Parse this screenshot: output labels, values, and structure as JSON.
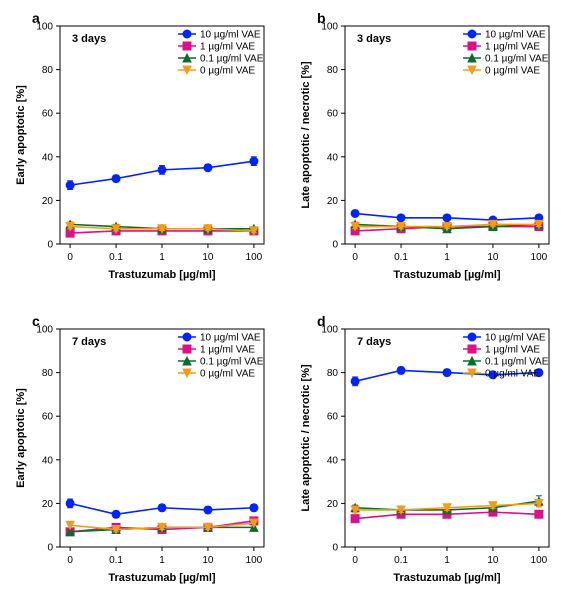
{
  "global": {
    "background_color": "#ffffff",
    "border_color": "#000000",
    "font_family": "Arial, Helvetica, sans-serif",
    "panel_label_fontsize": 14,
    "panel_label_fontweight": "bold",
    "title_fontsize": 11,
    "title_fontweight": "bold",
    "legend_fontsize": 10,
    "axis_label_fontsize": 11,
    "axis_label_fontweight": "bold",
    "tick_fontsize": 10,
    "x_ticks": [
      "0",
      "0.1",
      "1",
      "10",
      "100"
    ],
    "x_positions": [
      0,
      1,
      2,
      3,
      4
    ],
    "y_ticks": [
      0,
      20,
      40,
      60,
      80,
      100
    ],
    "ylim": [
      0,
      100
    ],
    "line_width": 1.6,
    "marker_size": 4,
    "error_cap": 3,
    "series_style": {
      "vae10": {
        "label": "10 µg/ml VAE",
        "color": "#0024ff",
        "marker": "circle"
      },
      "vae1": {
        "label": "1 µg/ml VAE",
        "color": "#d9118a",
        "marker": "square"
      },
      "vae01": {
        "label": "0.1 µg/ml VAE",
        "color": "#0c6b2e",
        "marker": "triangle-up"
      },
      "vae0": {
        "label": "0 µg/ml VAE",
        "color": "#f39c19",
        "marker": "triangle-down"
      }
    },
    "x_label": "Trastuzumab [µg/ml]"
  },
  "panels": {
    "a": {
      "panel_label": "a",
      "title": "3 days",
      "y_label": "Early apoptotic [%]",
      "series": {
        "vae10": {
          "y": [
            27,
            30,
            34,
            35,
            38
          ],
          "err": [
            2,
            1.5,
            2,
            1.5,
            2
          ]
        },
        "vae1": {
          "y": [
            5,
            6,
            6,
            6,
            6
          ],
          "err": [
            0.8,
            0.8,
            0.8,
            0.8,
            0.8
          ]
        },
        "vae01": {
          "y": [
            9,
            8,
            7,
            7,
            7
          ],
          "err": [
            1,
            1,
            0.8,
            0.8,
            0.8
          ]
        },
        "vae0": {
          "y": [
            8,
            7,
            7,
            7,
            6
          ],
          "err": [
            1,
            1,
            0.8,
            0.8,
            0.8
          ]
        }
      }
    },
    "b": {
      "panel_label": "b",
      "title": "3 days",
      "y_label": "Late apoptotic / necrotic [%]",
      "series": {
        "vae10": {
          "y": [
            14,
            12,
            12,
            11,
            12
          ],
          "err": [
            1.2,
            1,
            1,
            1,
            1
          ]
        },
        "vae1": {
          "y": [
            6,
            7,
            8,
            8,
            8
          ],
          "err": [
            0.8,
            0.8,
            0.8,
            0.8,
            0.8
          ]
        },
        "vae01": {
          "y": [
            9,
            8,
            7,
            8,
            9
          ],
          "err": [
            1,
            1,
            0.8,
            0.8,
            1
          ]
        },
        "vae0": {
          "y": [
            8,
            8,
            8,
            9,
            9
          ],
          "err": [
            1,
            1,
            0.8,
            0.8,
            1
          ]
        }
      }
    },
    "c": {
      "panel_label": "c",
      "title": "7 days",
      "y_label": "Early apoptotic [%]",
      "series": {
        "vae10": {
          "y": [
            20,
            15,
            18,
            17,
            18
          ],
          "err": [
            2,
            1.5,
            1.5,
            1.5,
            1.5
          ]
        },
        "vae1": {
          "y": [
            7,
            9,
            8,
            9,
            12
          ],
          "err": [
            1,
            1,
            1,
            1,
            1.5
          ]
        },
        "vae01": {
          "y": [
            7,
            8,
            9,
            9,
            9
          ],
          "err": [
            1,
            1,
            1,
            1,
            1
          ]
        },
        "vae0": {
          "y": [
            10,
            8,
            9,
            9,
            11
          ],
          "err": [
            1,
            1,
            1,
            1,
            1.2
          ]
        }
      }
    },
    "d": {
      "panel_label": "d",
      "title": "7 days",
      "y_label": "Late apoptotic / necrotic [%]",
      "series": {
        "vae10": {
          "y": [
            76,
            81,
            80,
            79,
            80
          ],
          "err": [
            2,
            1.5,
            1.5,
            1.5,
            1.5
          ]
        },
        "vae1": {
          "y": [
            13,
            15,
            15,
            16,
            15
          ],
          "err": [
            1.2,
            1.2,
            1.2,
            1.2,
            1.2
          ]
        },
        "vae01": {
          "y": [
            18,
            17,
            17,
            18,
            21
          ],
          "err": [
            1.2,
            1.2,
            1.2,
            1.2,
            2.5
          ]
        },
        "vae0": {
          "y": [
            17,
            17,
            18,
            19,
            20
          ],
          "err": [
            1.2,
            1.2,
            1.2,
            1.2,
            1.5
          ]
        }
      }
    }
  }
}
